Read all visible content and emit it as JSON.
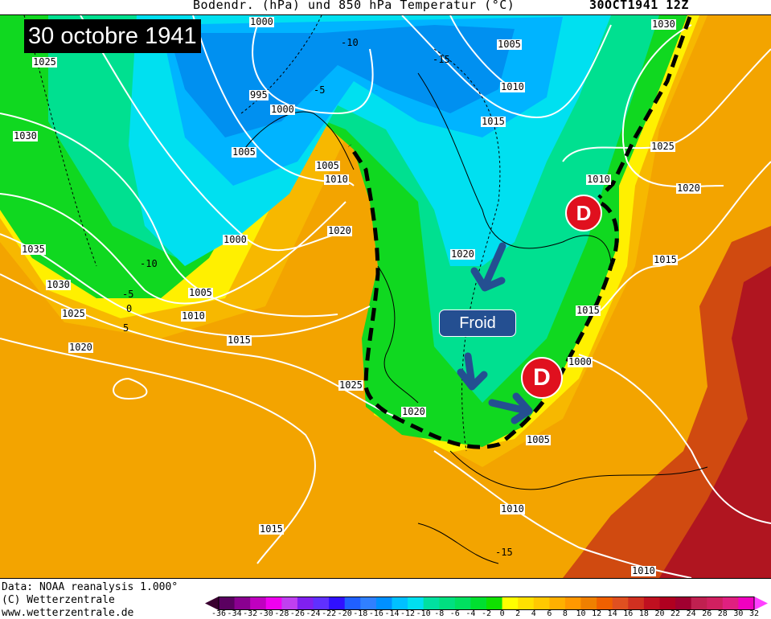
{
  "header": {
    "title": "Bodendr. (hPa) und 850 hPa Temperatur (°C)",
    "date_code": "30OCT1941 12Z"
  },
  "overlay": {
    "title": "30 octobre 1941",
    "label_froid": "Froid",
    "low_marker": "D",
    "front_color": "#000000",
    "arrow_color": "#244f91",
    "low_color": "#e0101e"
  },
  "isobar_labels": [
    "1000",
    "1005",
    "1030",
    "1025",
    "1010",
    "995",
    "1000",
    "1030",
    "1015",
    "1005",
    "1005",
    "1010",
    "1025",
    "1010",
    "1020",
    "1000",
    "1020",
    "1035",
    "1015",
    "1020",
    "1030",
    "1005",
    "1010",
    "1025",
    "1015",
    "1020",
    "1015",
    "1000",
    "1025",
    "1020",
    "1005",
    "1010",
    "1015",
    "1010"
  ],
  "temperature_labels": [
    "-10",
    "-15",
    "-5",
    "-10",
    "-5",
    "0",
    "5",
    "-15"
  ],
  "footer": {
    "data_source": "Data: NOAA reanalysis 1.000°",
    "copyright": "(C) Wetterzentrale",
    "url": "www.wetterzentrale.de"
  },
  "colorbar": {
    "ticks": [
      "-36",
      "-34",
      "-32",
      "-30",
      "-28",
      "-26",
      "-24",
      "-22",
      "-20",
      "-18",
      "-16",
      "-14",
      "-12",
      "-10",
      "-8",
      "-6",
      "-4",
      "-2",
      "0",
      "2",
      "4",
      "6",
      "8",
      "10",
      "12",
      "14",
      "16",
      "18",
      "20",
      "22",
      "24",
      "26",
      "28",
      "30",
      "32"
    ],
    "colors": [
      "#5a0060",
      "#8a0090",
      "#c000c0",
      "#f000f0",
      "#c040f0",
      "#8020f0",
      "#6030ff",
      "#3010ff",
      "#2060ff",
      "#3080ff",
      "#0090ff",
      "#00c0ff",
      "#00e0f0",
      "#00e0a0",
      "#00e080",
      "#00e060",
      "#00e030",
      "#10e000",
      "#ffff00",
      "#ffe000",
      "#ffc800",
      "#ffb000",
      "#ff9800",
      "#f08000",
      "#f06000",
      "#e05020",
      "#d03020",
      "#c01020",
      "#b00020",
      "#a00030",
      "#c02050",
      "#d02060",
      "#e02080",
      "#f000c0"
    ],
    "below_color": "#3a0030",
    "above_color": "#ff40ff"
  }
}
